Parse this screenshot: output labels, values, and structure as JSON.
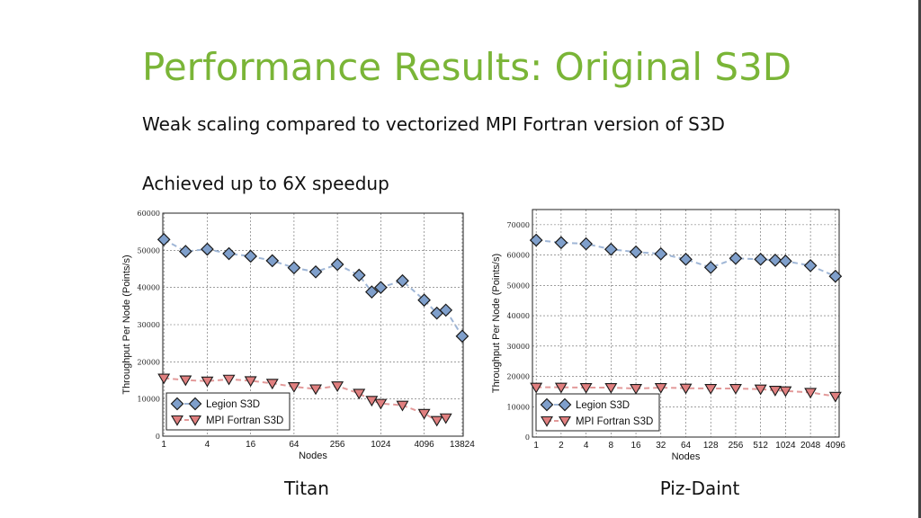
{
  "slide": {
    "title": "Performance Results: Original S3D",
    "bullet1": "Weak scaling compared to vectorized MPI Fortran version of S3D",
    "bullet2": "Achieved up to 6X speedup"
  },
  "colors": {
    "title": "#7ab537",
    "legion": "#7f9fcb",
    "mpi": "#e07f7f"
  },
  "chart_data": [
    {
      "type": "line",
      "caption": "Titan",
      "xlabel": "Nodes",
      "ylabel": "Throughput Per Node (Points/s)",
      "x_scale": "log2",
      "xticks": [
        1,
        4,
        16,
        64,
        256,
        1024,
        4096,
        13824
      ],
      "yticks": [
        0,
        10000,
        20000,
        30000,
        40000,
        50000,
        60000
      ],
      "ylim": [
        0,
        60000
      ],
      "grid": true,
      "legend": "bottom-left",
      "series": [
        {
          "name": "Legion S3D",
          "marker": "diamond",
          "x": [
            1,
            2,
            4,
            8,
            16,
            32,
            64,
            128,
            256,
            512,
            768,
            1024,
            2048,
            4096,
            6144,
            8192,
            13824
          ],
          "y": [
            52900,
            49700,
            50300,
            49100,
            48400,
            47200,
            45300,
            44200,
            46200,
            43300,
            38800,
            40000,
            41800,
            36600,
            33100,
            33900,
            26900
          ]
        },
        {
          "name": "MPI Fortran S3D",
          "marker": "triangle-down",
          "x": [
            1,
            2,
            4,
            8,
            16,
            32,
            64,
            128,
            256,
            512,
            768,
            1024,
            2048,
            4096,
            6144,
            8192
          ],
          "y": [
            15600,
            15100,
            14800,
            15300,
            14900,
            14200,
            13300,
            12700,
            13500,
            11500,
            9600,
            8800,
            8300,
            6100,
            4200,
            4900
          ]
        }
      ]
    },
    {
      "type": "line",
      "caption": "Piz-Daint",
      "xlabel": "Nodes",
      "ylabel": "Throughput Per Node (Points/s)",
      "x_scale": "log2",
      "xticks": [
        1,
        2,
        4,
        8,
        16,
        32,
        64,
        128,
        256,
        512,
        1024,
        2048,
        4096
      ],
      "yticks": [
        0,
        10000,
        20000,
        30000,
        40000,
        50000,
        60000,
        70000
      ],
      "ylim": [
        0,
        75000
      ],
      "grid": true,
      "legend": "bottom-left",
      "series": [
        {
          "name": "Legion S3D",
          "marker": "diamond",
          "x": [
            1,
            2,
            4,
            8,
            16,
            32,
            64,
            128,
            256,
            512,
            768,
            1024,
            2048,
            4096
          ],
          "y": [
            64900,
            64100,
            63700,
            61900,
            61000,
            60400,
            58600,
            55900,
            58900,
            58600,
            58300,
            58000,
            56500,
            53000
          ]
        },
        {
          "name": "MPI Fortran S3D",
          "marker": "triangle-down",
          "x": [
            1,
            2,
            4,
            8,
            16,
            32,
            64,
            128,
            256,
            512,
            768,
            1024,
            2048,
            4096
          ],
          "y": [
            16400,
            16400,
            16300,
            16300,
            16000,
            16300,
            16100,
            16000,
            16000,
            15800,
            15400,
            15200,
            14700,
            13400
          ]
        }
      ]
    }
  ]
}
